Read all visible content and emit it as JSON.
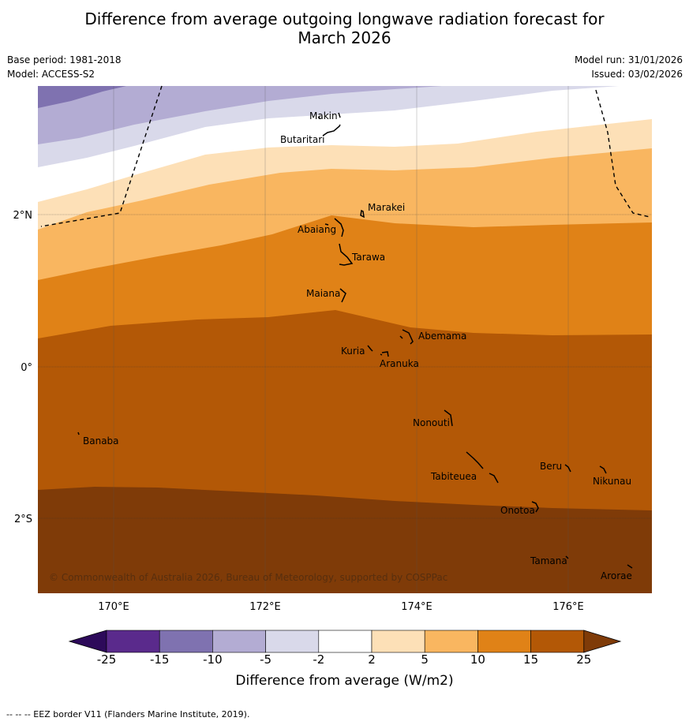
{
  "title_line1": "Difference from average outgoing longwave radiation forecast for",
  "title_line2": "March 2026",
  "base_period": "Base period: 1981-2018",
  "model": "Model: ACCESS-S2",
  "model_run": "Model run: 31/01/2026",
  "issued": "Issued: 03/02/2026",
  "copyright": "© Commonwealth of Australia 2026, Bureau of Meteorology, supported by COSPPac",
  "axes": {
    "lon_ticks": [
      "170°E",
      "172°E",
      "174°E",
      "176°E"
    ],
    "lat_ticks": [
      "2°N",
      "0°",
      "2°S"
    ]
  },
  "places": [
    {
      "name": "Makin"
    },
    {
      "name": "Butaritari"
    },
    {
      "name": "Marakei"
    },
    {
      "name": "Abaiang"
    },
    {
      "name": "Tarawa"
    },
    {
      "name": "Maiana"
    },
    {
      "name": "Abemama"
    },
    {
      "name": "Kuria"
    },
    {
      "name": "Aranuka"
    },
    {
      "name": "Nonouti"
    },
    {
      "name": "Banaba"
    },
    {
      "name": "Beru"
    },
    {
      "name": "Tabiteuea"
    },
    {
      "name": "Nikunau"
    },
    {
      "name": "Onotoa"
    },
    {
      "name": "Tamana"
    },
    {
      "name": "Arorae"
    }
  ],
  "colorbar": {
    "labels": [
      "-25",
      "-15",
      "-10",
      "-5",
      "-2",
      "2",
      "5",
      "10",
      "15",
      "25"
    ],
    "colors": [
      "#2d0a5a",
      "#5a2a8c",
      "#7f72b0",
      "#b3acd3",
      "#d9d9ea",
      "#ffffff",
      "#fde0b7",
      "#f9b660",
      "#e08217",
      "#b35806",
      "#7f3b08"
    ],
    "title": "Difference from average (W/m2)"
  },
  "footnote": "--  --  -- EEZ border V11 (Flanders Marine Institute, 2019)."
}
